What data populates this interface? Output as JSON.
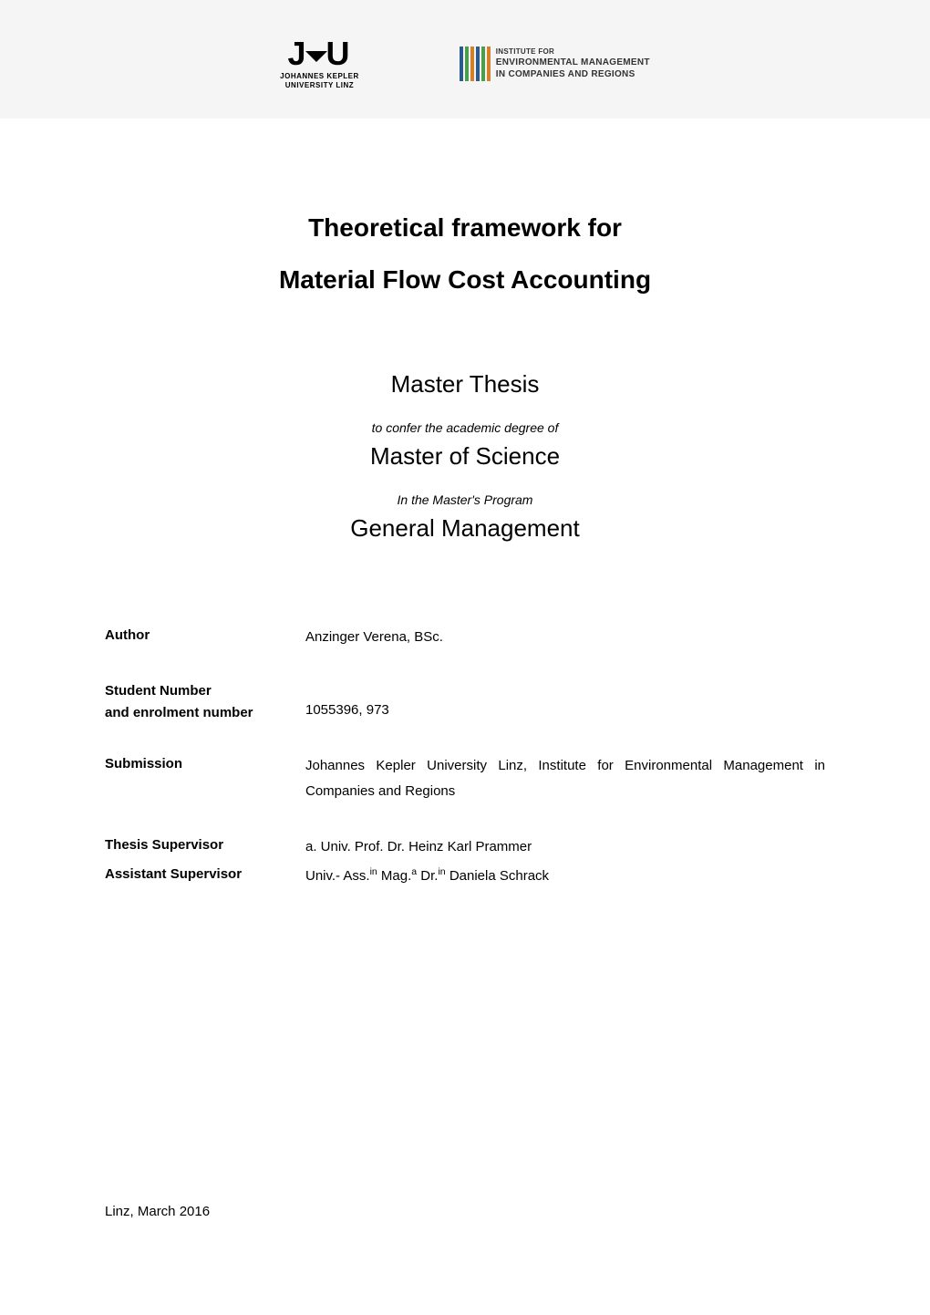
{
  "header": {
    "jku_logo": {
      "top_text": "J",
      "top_text_end": "U",
      "line1": "JOHANNES KEPLER",
      "line2": "UNIVERSITY LINZ"
    },
    "institute_logo": {
      "line1": "INSTITUTE FOR",
      "line2": "ENVIRONMENTAL MANAGEMENT",
      "line3": "IN COMPANIES AND REGIONS",
      "bar_colors": [
        "#2b5a8c",
        "#4a9d4a",
        "#d4802b",
        "#2b5a8c",
        "#4a9d4a",
        "#d4802b"
      ]
    }
  },
  "title": {
    "line1": "Theoretical framework for",
    "line2": "Material Flow Cost Accounting"
  },
  "subtitle": {
    "master_thesis": "Master Thesis",
    "confer": "to confer the academic degree of",
    "degree": "Master of Science",
    "program_label": "In the Master's Program",
    "program_name": "General Management"
  },
  "info": {
    "author_label": "Author",
    "author_value": "Anzinger Verena, BSc.",
    "student_number_label_line1": "Student Number",
    "student_number_label_line2": "and enrolment number",
    "student_number_value": "1055396, 973",
    "submission_label": "Submission",
    "submission_value": "Johannes Kepler University Linz, Institute for Environmental Management in Companies and Regions",
    "thesis_supervisor_label": "Thesis Supervisor",
    "thesis_supervisor_value": "a. Univ. Prof. Dr. Heinz Karl Prammer",
    "assistant_supervisor_label": "Assistant Supervisor",
    "assistant_supervisor_value_html": "Univ.- Ass.<sup>in</sup> Mag.<sup>a</sup> Dr.<sup>in</sup> Daniela Schrack"
  },
  "footer": {
    "location_date": "Linz, March 2016"
  },
  "colors": {
    "header_bg": "#f5f5f5",
    "page_bg": "#ffffff",
    "text": "#000000"
  }
}
